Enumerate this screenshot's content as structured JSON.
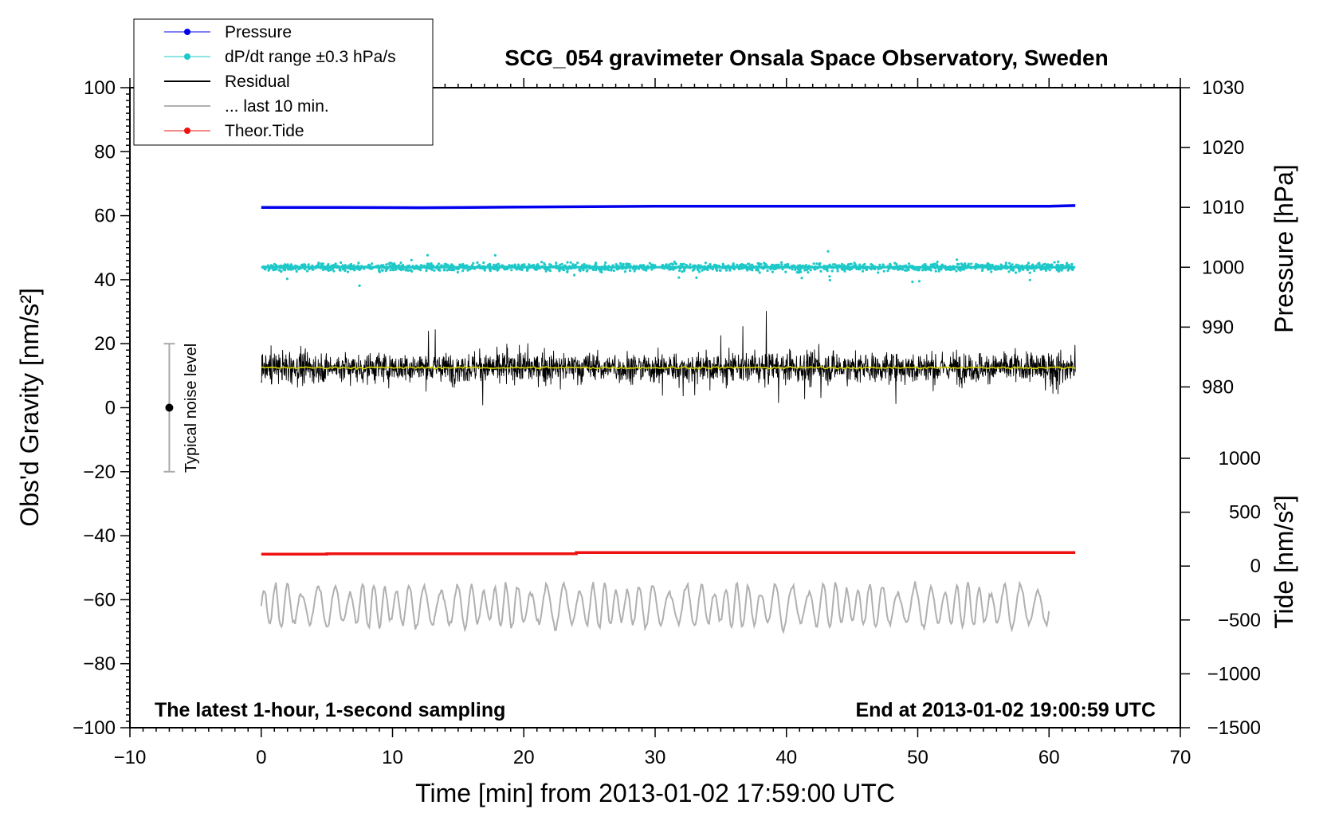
{
  "chart_data": {
    "type": "line",
    "title": "SCG_054 gravimeter Onsala Space Observatory, Sweden",
    "xlabel": "Time [min] from 2013-01-02 17:59:00 UTC",
    "ylabel": "Obs'd Gravity [nm/s²]",
    "ylabel_right_upper": "Pressure [hPa]",
    "ylabel_right_lower": "Tide [nm/s²]",
    "xlim": [
      -10,
      70
    ],
    "ylim": [
      -100,
      100
    ],
    "xticks": [
      -10,
      0,
      10,
      20,
      30,
      40,
      50,
      60,
      70
    ],
    "xtick_labels": [
      "−10",
      "0",
      "10",
      "20",
      "30",
      "40",
      "50",
      "60",
      "70"
    ],
    "yticks": [
      -100,
      -80,
      -60,
      -40,
      -20,
      0,
      20,
      40,
      60,
      80,
      100
    ],
    "ytick_labels": [
      "−100",
      "−80",
      "−60",
      "−40",
      "−20",
      "0",
      "20",
      "40",
      "60",
      "80",
      "100"
    ],
    "pressure_axis": {
      "range": [
        975,
        1030
      ],
      "ticks": [
        980,
        990,
        1000,
        1010,
        1020,
        1030
      ],
      "tick_labels": [
        "980",
        "990",
        "1000",
        "1010",
        "1020",
        "1030"
      ]
    },
    "tide_axis": {
      "range": [
        -1500,
        1000
      ],
      "ticks": [
        -1500,
        -1000,
        -500,
        0,
        500,
        1000
      ],
      "tick_labels": [
        "−1500",
        "−1000",
        "−500",
        "0",
        "500",
        "1000"
      ]
    },
    "annotations": {
      "left": "The latest 1-hour, 1-second sampling",
      "right": "End at 2013-01-02 19:00:59 UTC",
      "noise": "Typical noise level"
    },
    "noise_bar": {
      "x": -7,
      "center": 0,
      "low": -20,
      "high": 20
    },
    "series": [
      {
        "name": "Pressure",
        "color": "#0000ee",
        "axis": "pressure",
        "x": [
          0,
          6,
          12,
          16,
          24,
          30,
          40,
          50,
          60,
          62
        ],
        "values": [
          1010.0,
          1010.0,
          1009.95,
          1010.0,
          1010.1,
          1010.2,
          1010.2,
          1010.2,
          1010.2,
          1010.3
        ]
      },
      {
        "name": "dP/dt range ±0.3 hPa/s",
        "color": "#1ec8c8",
        "axis": "pressure",
        "center": 1000,
        "spread": 1.5,
        "x_range": [
          0,
          62
        ]
      },
      {
        "name": "Residual",
        "color": "#000000",
        "axis": "gravity",
        "center": 12.5,
        "amplitude": 10,
        "x_range": [
          0,
          62
        ],
        "mean_line_color": "#d4d400"
      },
      {
        "name": "... last 10 min.",
        "color": "#b0b0b0",
        "axis": "gravity",
        "center": -62,
        "amplitude": 7,
        "x_range": [
          0,
          60
        ]
      },
      {
        "name": "Theor.Tide",
        "color": "#ee1111",
        "axis": "tide",
        "x": [
          0,
          5,
          5,
          24,
          24,
          62
        ],
        "values": [
          110,
          110,
          115,
          115,
          125,
          125
        ]
      }
    ],
    "legend": {
      "placement": "top-left",
      "entries": [
        {
          "label": "Pressure",
          "color": "#0000ee",
          "marker": true
        },
        {
          "label": "dP/dt range ±0.3 hPa/s",
          "color": "#1ec8c8",
          "marker": true
        },
        {
          "label": "Residual",
          "color": "#000000",
          "marker": false
        },
        {
          "label": "... last 10 min.",
          "color": "#b0b0b0",
          "marker": false
        },
        {
          "label": "Theor.Tide",
          "color": "#ee1111",
          "marker": true
        }
      ]
    }
  }
}
